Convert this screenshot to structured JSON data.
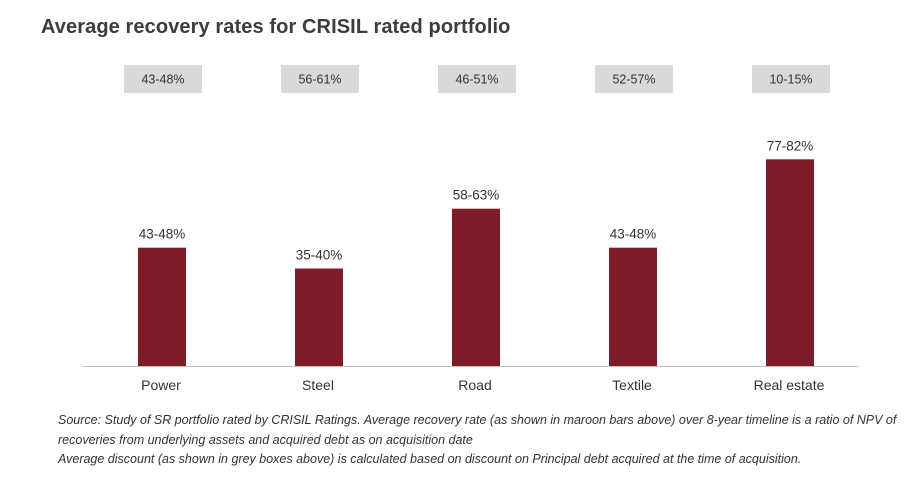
{
  "title": "Average recovery rates for CRISIL rated portfolio",
  "colors": {
    "bar": "#7b1c28",
    "discount_box": "#d9d9d9",
    "axis": "#bfbfbf",
    "text": "#333333"
  },
  "chart_data": {
    "type": "bar",
    "title": "Average recovery rates for CRISIL rated portfolio",
    "categories": [
      "Power",
      "Steel",
      "Road",
      "Textile",
      "Real estate"
    ],
    "values": [
      45.5,
      37.5,
      60.5,
      45.5,
      79.5
    ],
    "value_labels": [
      "43-48%",
      "35-40%",
      "58-63%",
      "43-48%",
      "77-82%"
    ],
    "discount_labels": [
      "43-48%",
      "56-61%",
      "46-51%",
      "52-57%",
      "10-15%"
    ],
    "xlabel": "",
    "ylabel": "",
    "ylim": [
      0,
      100
    ],
    "grid": false,
    "legend": "none"
  },
  "notes": {
    "source": "Source: Study of SR portfolio rated by CRISIL Ratings. Average recovery rate (as shown in maroon bars above) over 8-year timeline is a ratio of  NPV of recoveries from underlying assets and acquired debt as on acquisition date",
    "discount": "Average discount (as shown in grey boxes above) is calculated based on discount on Principal debt acquired at the time of acquisition."
  }
}
